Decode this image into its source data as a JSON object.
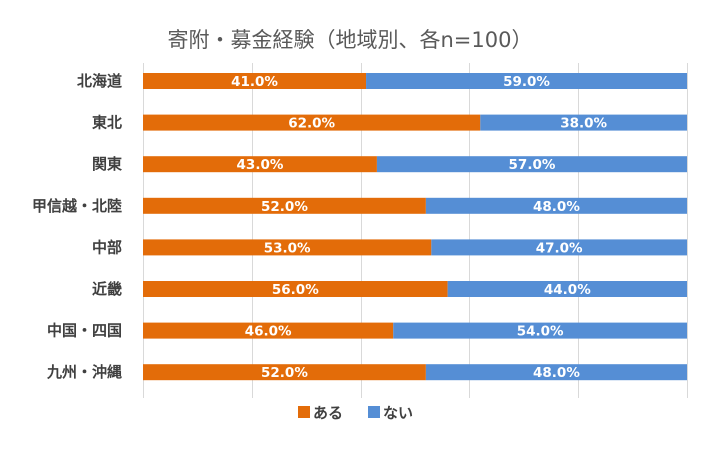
{
  "chart_data": {
    "type": "bar",
    "orientation": "horizontal",
    "stacked": "percent",
    "title": "寄附・募金経験（地域別、各n=100）",
    "categories": [
      "北海道",
      "東北",
      "関東",
      "甲信越・北陸",
      "中部",
      "近畿",
      "中国・四国",
      "九州・沖縄"
    ],
    "series": [
      {
        "name": "ある",
        "color": "#E36C09",
        "values": [
          41.0,
          62.0,
          43.0,
          52.0,
          53.0,
          56.0,
          46.0,
          52.0
        ]
      },
      {
        "name": "ない",
        "color": "#558ED5",
        "values": [
          59.0,
          38.0,
          57.0,
          48.0,
          47.0,
          44.0,
          54.0,
          48.0
        ]
      }
    ],
    "xlim": [
      0,
      100
    ],
    "value_format": "0.0%",
    "grid": true,
    "legend": "bottom"
  }
}
